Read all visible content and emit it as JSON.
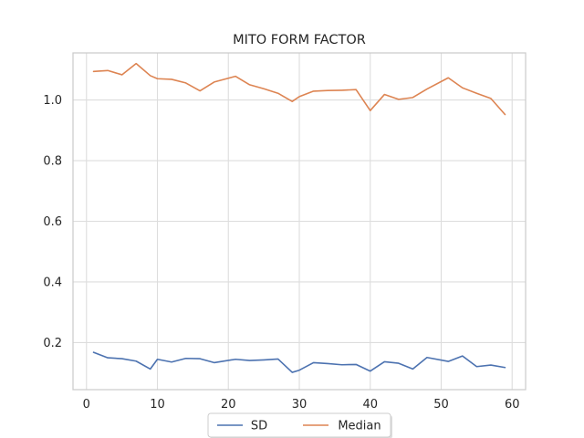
{
  "chart_data": {
    "type": "line",
    "title": "MITO FORM FACTOR",
    "xlabel": "",
    "ylabel": "",
    "xlim": [
      -1.9,
      61.9
    ],
    "ylim": [
      0.045,
      1.155
    ],
    "xticks": [
      0,
      10,
      20,
      30,
      40,
      50,
      60
    ],
    "yticks": [
      0.2,
      0.4,
      0.6,
      0.8,
      1.0
    ],
    "ytick_labels": [
      "0.2",
      "0.4",
      "0.6",
      "0.8",
      "1.0"
    ],
    "grid": true,
    "legend_position": "bottom-center",
    "series": [
      {
        "name": "SD",
        "color": "#4c72b0",
        "x": [
          1,
          3,
          5,
          7,
          9,
          10,
          12,
          14,
          16,
          18,
          21,
          23,
          25,
          27,
          29,
          30,
          32,
          34,
          36,
          38,
          40,
          42,
          44,
          46,
          48,
          51,
          53,
          55,
          57,
          59
        ],
        "y": [
          0.168,
          0.15,
          0.147,
          0.139,
          0.113,
          0.145,
          0.136,
          0.148,
          0.147,
          0.134,
          0.145,
          0.141,
          0.143,
          0.146,
          0.102,
          0.109,
          0.134,
          0.131,
          0.127,
          0.128,
          0.106,
          0.137,
          0.132,
          0.113,
          0.151,
          0.138,
          0.156,
          0.121,
          0.126,
          0.118
        ]
      },
      {
        "name": "Median",
        "color": "#dd8452",
        "x": [
          1,
          3,
          5,
          7,
          9,
          10,
          12,
          14,
          16,
          18,
          21,
          23,
          25,
          27,
          29,
          30,
          32,
          34,
          36,
          38,
          40,
          42,
          44,
          46,
          48,
          51,
          53,
          55,
          57,
          59
        ],
        "y": [
          1.094,
          1.097,
          1.083,
          1.12,
          1.08,
          1.07,
          1.068,
          1.056,
          1.03,
          1.059,
          1.078,
          1.05,
          1.037,
          1.022,
          0.995,
          1.011,
          1.029,
          1.031,
          1.032,
          1.034,
          0.965,
          1.018,
          1.002,
          1.008,
          1.036,
          1.073,
          1.04,
          1.022,
          1.005,
          0.952
        ]
      }
    ]
  }
}
